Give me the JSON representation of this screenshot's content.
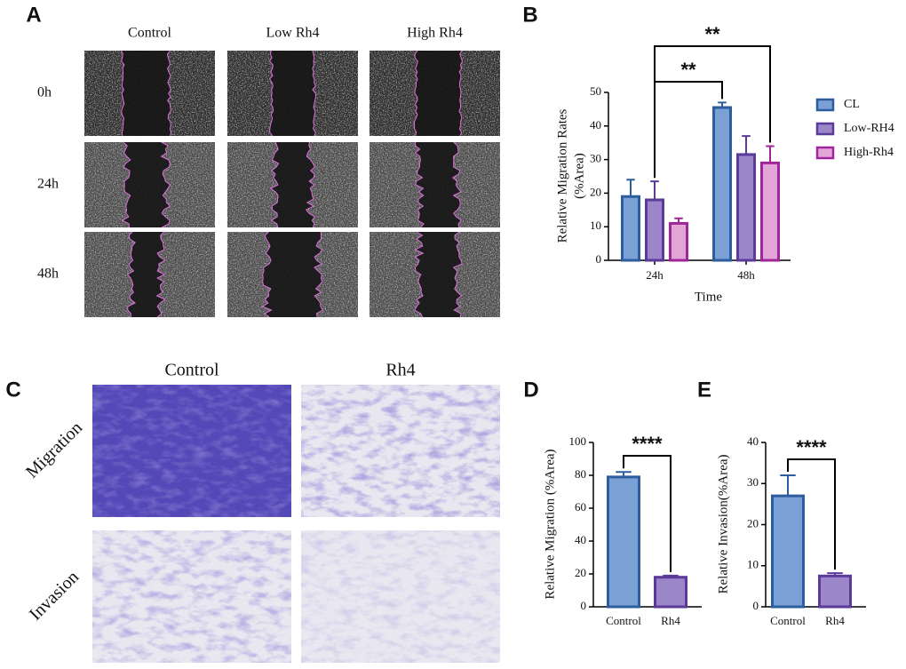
{
  "panel_labels": [
    "A",
    "B",
    "C",
    "D",
    "E"
  ],
  "panel_a": {
    "columns": [
      "Control",
      "Low Rh4",
      "High Rh4"
    ],
    "rows": [
      "0h",
      "24h",
      "48h"
    ]
  },
  "panel_c": {
    "columns": [
      "Control",
      "Rh4"
    ],
    "rows": [
      "Migration",
      "Invasion"
    ]
  },
  "chart_data": [
    {
      "type": "bar",
      "ylabel": [
        "Relative Migration Rates",
        "(%Area)"
      ],
      "xlabel": "Time",
      "categories": [
        "24h",
        "48h"
      ],
      "ylim": [
        0,
        50
      ],
      "yticks": [
        0,
        10,
        20,
        30,
        40,
        50
      ],
      "series": [
        {
          "name": "CL",
          "color": "#7aa0d6",
          "edgecolor": "#2c5d9e",
          "values": [
            19,
            45.5
          ],
          "errors": [
            5,
            1.5
          ]
        },
        {
          "name": "Low-RH4",
          "color": "#9a86c9",
          "edgecolor": "#5b3a99",
          "values": [
            18,
            31.5
          ],
          "errors": [
            5.5,
            5.5
          ]
        },
        {
          "name": "High-Rh4",
          "color": "#e2a6d6",
          "edgecolor": "#a0259a",
          "values": [
            11,
            29
          ],
          "errors": [
            1.5,
            5
          ]
        }
      ],
      "annotations": [
        "**",
        "**"
      ]
    },
    {
      "type": "bar",
      "ylabel": [
        "Relative Migration (%Area)"
      ],
      "categories": [
        "Control",
        "Rh4"
      ],
      "ylim": [
        0,
        100
      ],
      "yticks": [
        0,
        20,
        40,
        60,
        80,
        100
      ],
      "values": [
        79,
        18
      ],
      "errors": [
        3,
        1
      ],
      "colors": [
        "#7aa0d6",
        "#9a86c9"
      ],
      "edgecolors": [
        "#2c5d9e",
        "#5b3a99"
      ],
      "annotations": [
        "****"
      ]
    },
    {
      "type": "bar",
      "ylabel": [
        "Relative Invasion(%Area)"
      ],
      "categories": [
        "Control",
        "Rh4"
      ],
      "ylim": [
        0,
        40
      ],
      "yticks": [
        0,
        10,
        20,
        30,
        40
      ],
      "values": [
        27,
        7.5
      ],
      "errors": [
        5,
        0.7
      ],
      "colors": [
        "#7aa0d6",
        "#9a86c9"
      ],
      "edgecolors": [
        "#2c5d9e",
        "#5b3a99"
      ],
      "annotations": [
        "****"
      ]
    }
  ]
}
